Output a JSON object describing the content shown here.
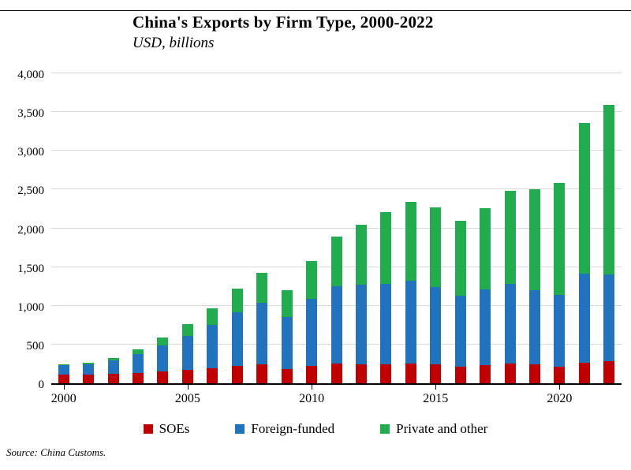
{
  "title": "China's Exports by Firm Type, 2000-2022",
  "subtitle": "USD, billions",
  "source": "Source: China Customs.",
  "chart_data": {
    "type": "bar",
    "stacked": true,
    "title": "China's Exports by Firm Type, 2000-2022",
    "subtitle": "USD, billions",
    "xlabel": "",
    "ylabel": "USD, billions",
    "ylim": [
      0,
      4000
    ],
    "ytick_step": 500,
    "grid": true,
    "legend_position": "bottom",
    "categories": [
      2000,
      2001,
      2002,
      2003,
      2004,
      2005,
      2006,
      2007,
      2008,
      2009,
      2010,
      2011,
      2012,
      2013,
      2014,
      2015,
      2016,
      2017,
      2018,
      2019,
      2020,
      2021,
      2022
    ],
    "xticks": [
      2000,
      2005,
      2010,
      2015,
      2020
    ],
    "series": [
      {
        "name": "SOEs",
        "color": "#C00000",
        "values": [
          115,
          113,
          122,
          135,
          153,
          170,
          191,
          220,
          247,
          180,
          225,
          255,
          245,
          240,
          250,
          240,
          215,
          230,
          250,
          240,
          210,
          265,
          290
        ]
      },
      {
        "name": "Foreign-funded",
        "color": "#2173BD",
        "values": [
          119,
          133,
          170,
          240,
          339,
          444,
          564,
          695,
          790,
          672,
          862,
          995,
          1023,
          1044,
          1075,
          1000,
          916,
          980,
          1036,
          960,
          935,
          1150,
          1115
        ]
      },
      {
        "name": "Private and other",
        "color": "#21AC4E",
        "values": [
          15,
          20,
          34,
          63,
          101,
          148,
          214,
          303,
          392,
          350,
          491,
          648,
          781,
          925,
          1017,
          1033,
          967,
          1053,
          1201,
          1299,
          1445,
          1949,
          2189
        ]
      }
    ],
    "totals": [
      249,
      266,
      326,
      438,
      593,
      762,
      969,
      1218,
      1429,
      1202,
      1578,
      1898,
      2049,
      2209,
      2342,
      2273,
      2098,
      2263,
      2487,
      2499,
      2590,
      3364,
      3594
    ]
  }
}
